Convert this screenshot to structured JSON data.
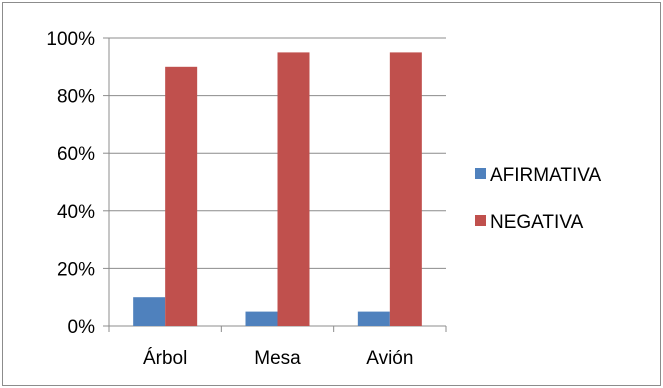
{
  "chart_data": {
    "type": "bar",
    "categories": [
      "Árbol",
      "Mesa",
      "Avión"
    ],
    "series": [
      {
        "name": "AFIRMATIVA",
        "values": [
          10,
          5,
          5
        ],
        "color": "#4f81bd"
      },
      {
        "name": "NEGATIVA",
        "values": [
          90,
          95,
          95
        ],
        "color": "#c0504d"
      }
    ],
    "y_ticks": [
      "0%",
      "20%",
      "40%",
      "60%",
      "80%",
      "100%"
    ],
    "ylim": [
      0,
      100
    ],
    "grid": true,
    "legend_position": "right"
  }
}
